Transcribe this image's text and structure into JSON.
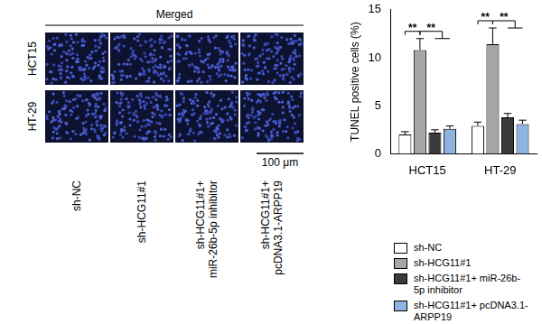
{
  "chart_data": {
    "type": "bar",
    "y_label": "TUNEL positive cells (%)",
    "categories": [
      "HCT15",
      "HT-29"
    ],
    "series": [
      {
        "name": "sh-NC",
        "color": "#ffffff",
        "values": [
          2.0,
          2.9
        ],
        "error": [
          0.3,
          0.4
        ]
      },
      {
        "name": "sh-HCG11#1",
        "color": "#a6a6a6",
        "values": [
          10.8,
          11.4
        ],
        "error": [
          1.2,
          1.7
        ]
      },
      {
        "name": "sh-HCG11#1+ miR-26b-5p inhibitor",
        "color": "#3a3a3a",
        "values": [
          2.2,
          3.8
        ],
        "error": [
          0.3,
          0.4
        ]
      },
      {
        "name": "sh-HCG11#1+ pcDNA3.1-ARPP19",
        "color": "#8fb3e0",
        "values": [
          2.6,
          3.1
        ],
        "error": [
          0.3,
          0.4
        ]
      }
    ],
    "ylim": [
      0,
      15
    ],
    "yticks": [
      0,
      5,
      10,
      15
    ],
    "grid": false,
    "significance": [
      {
        "category": "HCT15",
        "from": "sh-NC",
        "to": "sh-HCG11#1",
        "label": "**"
      },
      {
        "category": "HCT15",
        "from": "sh-HCG11#1",
        "to": [
          "sh-HCG11#1+ miR-26b-5p inhibitor",
          "sh-HCG11#1+ pcDNA3.1-ARPP19"
        ],
        "label": "**"
      },
      {
        "category": "HT-29",
        "from": "sh-NC",
        "to": "sh-HCG11#1",
        "label": "**"
      },
      {
        "category": "HT-29",
        "from": "sh-HCG11#1",
        "to": [
          "sh-HCG11#1+ miR-26b-5p inhibitor",
          "sh-HCG11#1+ pcDNA3.1-ARPP19"
        ],
        "label": "**"
      }
    ]
  },
  "image_panel": {
    "title": "Merged",
    "rows": [
      "HCT15",
      "HT-29"
    ],
    "columns": [
      "sh-NC",
      "sh-HCG11#1",
      "sh-HCG11#1+\nmiR-26b-5p inhibitor",
      "sh-HCG11#1+\npcDNA3.1-ARPP19"
    ],
    "scale_bar": "100 μm"
  }
}
